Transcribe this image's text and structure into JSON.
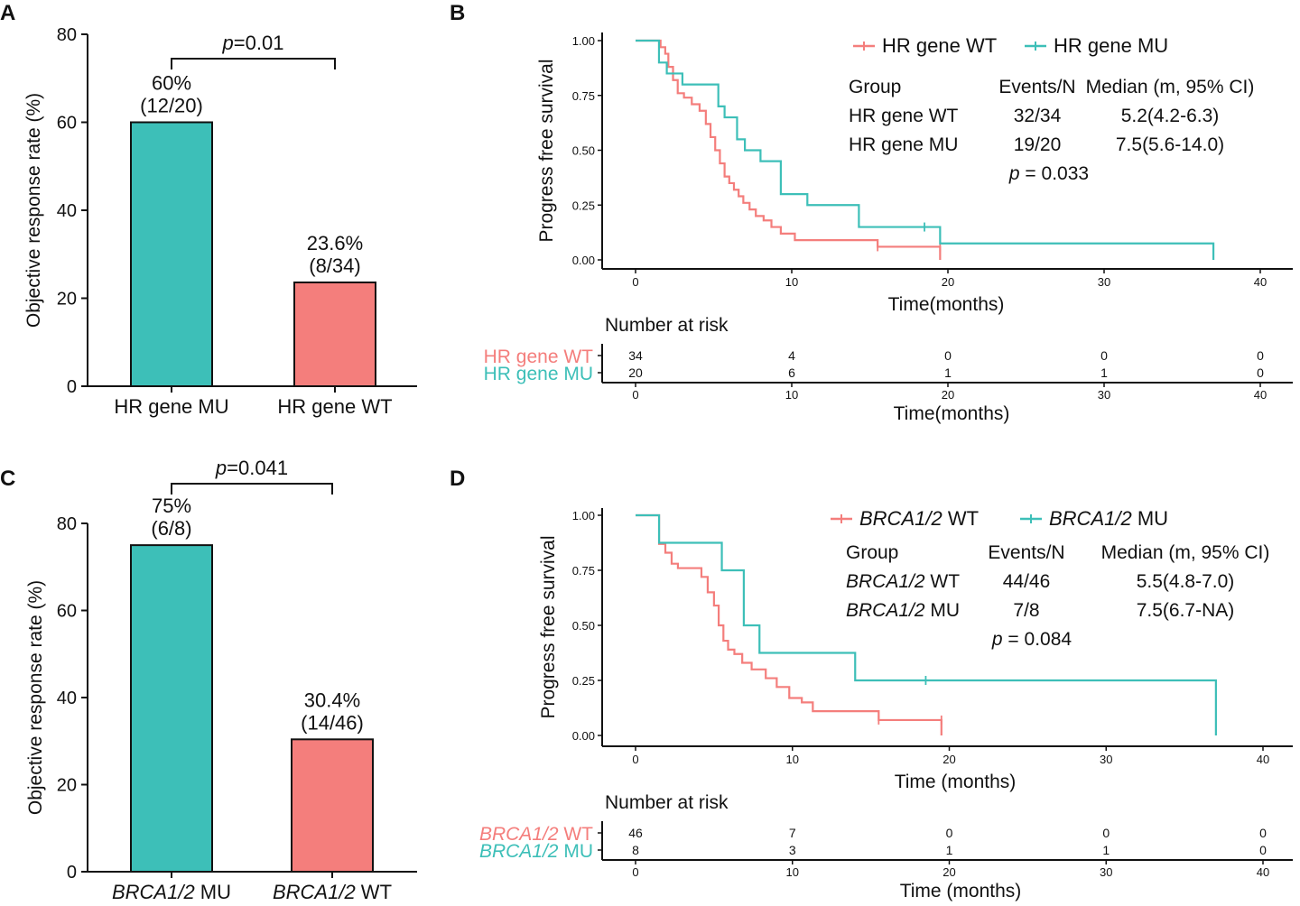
{
  "colors": {
    "mu": "#3DBFB8",
    "wt": "#F47E7C",
    "axis": "#111111"
  },
  "chart_data": [
    {
      "id": "A",
      "panel_label": "A",
      "type": "bar",
      "ylabel": "Objective response rate (%)",
      "ylim": [
        0,
        80
      ],
      "yticks": [
        0,
        20,
        40,
        60,
        80
      ],
      "categories": [
        {
          "label": "HR gene MU",
          "ital": "",
          "rest": "HR gene MU",
          "value": 60,
          "pct_label": "60%",
          "count_label": "(12/20)",
          "color": "#3DBFB8"
        },
        {
          "label": "HR gene WT",
          "ital": "",
          "rest": "HR gene WT",
          "value": 23.6,
          "pct_label": "23.6%",
          "count_label": "(8/34)",
          "color": "#F47E7C"
        }
      ],
      "pvalue": {
        "p": "p",
        "text": "=0.01"
      }
    },
    {
      "id": "C",
      "panel_label": "C",
      "type": "bar",
      "ylabel": "Objective response rate (%)",
      "ylim": [
        0,
        80
      ],
      "yticks": [
        0,
        20,
        40,
        60,
        80
      ],
      "categories": [
        {
          "label": "BRCA1/2 MU",
          "ital": "BRCA1/2",
          "rest": " MU",
          "value": 75,
          "pct_label": "75%",
          "count_label": "(6/8)",
          "color": "#3DBFB8"
        },
        {
          "label": "BRCA1/2 WT",
          "ital": "BRCA1/2",
          "rest": " WT",
          "value": 30.4,
          "pct_label": "30.4%",
          "count_label": "(14/46)",
          "color": "#F47E7C"
        }
      ],
      "pvalue": {
        "p": "p",
        "text": "=0.041"
      }
    },
    {
      "id": "B",
      "panel_label": "B",
      "type": "line",
      "subtype": "kaplan-meier",
      "ylabel": "Progress free survival",
      "xlabel": "Time(months)",
      "xlim": [
        0,
        40
      ],
      "ylim": [
        0,
        1
      ],
      "xticks": [
        0,
        10,
        20,
        30,
        40
      ],
      "yticks": [
        "0.00",
        "0.25",
        "0.50",
        "0.75",
        "1.00"
      ],
      "series": [
        {
          "name": "HR gene WT",
          "ital": "",
          "rest": "HR gene WT",
          "color": "#F47E7C",
          "x": [
            0,
            1.6,
            1.9,
            2.1,
            2.4,
            2.7,
            3.1,
            3.6,
            4.1,
            4.5,
            4.8,
            5.1,
            5.4,
            5.7,
            6.0,
            6.3,
            6.6,
            6.9,
            7.3,
            7.7,
            8.2,
            8.7,
            9.3,
            10.2,
            11.5,
            13.0,
            15.5,
            19.5
          ],
          "y": [
            1.0,
            0.97,
            0.94,
            0.88,
            0.82,
            0.76,
            0.74,
            0.71,
            0.68,
            0.62,
            0.56,
            0.5,
            0.44,
            0.38,
            0.35,
            0.32,
            0.29,
            0.26,
            0.23,
            0.2,
            0.18,
            0.15,
            0.12,
            0.09,
            0.09,
            0.09,
            0.06,
            0.0
          ],
          "censor": [
            {
              "x": 15.5,
              "y": 0.06
            },
            {
              "x": 19.5,
              "y": 0.06
            }
          ]
        },
        {
          "name": "HR gene MU",
          "ital": "",
          "rest": "HR gene MU",
          "color": "#3DBFB8",
          "x": [
            0,
            1.5,
            2.0,
            3.0,
            5.3,
            5.7,
            6.5,
            7.0,
            8.0,
            9.3,
            11.0,
            14.3,
            19.5,
            37.0
          ],
          "y": [
            1.0,
            0.9,
            0.85,
            0.8,
            0.7,
            0.65,
            0.55,
            0.5,
            0.45,
            0.3,
            0.25,
            0.15,
            0.075,
            0.0
          ],
          "censor": [
            {
              "x": 18.5,
              "y": 0.15
            }
          ]
        }
      ],
      "stats_table": {
        "headers": [
          "Group",
          "Events/N",
          "Median (m, 95% CI)"
        ],
        "rows": [
          {
            "ital": "",
            "rest": "HR gene WT",
            "events": "32/34",
            "median": "5.2(4.2-6.3)"
          },
          {
            "ital": "",
            "rest": "HR gene MU",
            "events": "19/20",
            "median": "7.5(5.6-14.0)"
          }
        ],
        "p": "p",
        "ptext": " = 0.033"
      },
      "risk_table": {
        "title": "Number at risk",
        "xlabel": "Time(months)",
        "rows": [
          {
            "ital": "",
            "rest": "HR gene WT",
            "color": "#F47E7C",
            "values": [
              34,
              4,
              0,
              0,
              0
            ]
          },
          {
            "ital": "",
            "rest": "HR gene MU",
            "color": "#3DBFB8",
            "values": [
              20,
              6,
              1,
              1,
              0
            ]
          }
        ]
      }
    },
    {
      "id": "D",
      "panel_label": "D",
      "type": "line",
      "subtype": "kaplan-meier",
      "ylabel": "Progress free survival",
      "xlabel": "Time (months)",
      "xlim": [
        0,
        40
      ],
      "ylim": [
        0,
        1
      ],
      "xticks": [
        0,
        10,
        20,
        30,
        40
      ],
      "yticks": [
        "0.00",
        "0.25",
        "0.50",
        "0.75",
        "1.00"
      ],
      "series": [
        {
          "name": "BRCA1/2 WT",
          "ital": "BRCA1/2",
          "rest": " WT",
          "color": "#F47E7C",
          "x": [
            0,
            1.5,
            1.9,
            2.3,
            2.7,
            3.2,
            4.2,
            4.6,
            5.0,
            5.3,
            5.6,
            5.9,
            6.3,
            6.8,
            7.4,
            8.3,
            9.0,
            9.8,
            10.6,
            11.3,
            13.2,
            15.5,
            19.5
          ],
          "y": [
            1.0,
            0.87,
            0.83,
            0.78,
            0.76,
            0.76,
            0.72,
            0.65,
            0.59,
            0.5,
            0.43,
            0.39,
            0.37,
            0.33,
            0.3,
            0.26,
            0.22,
            0.17,
            0.15,
            0.11,
            0.11,
            0.07,
            0.0
          ],
          "censor": [
            {
              "x": 15.5,
              "y": 0.07
            },
            {
              "x": 19.5,
              "y": 0.07
            }
          ]
        },
        {
          "name": "BRCA1/2 MU",
          "ital": "BRCA1/2",
          "rest": " MU",
          "color": "#3DBFB8",
          "x": [
            0,
            1.5,
            5.5,
            6.9,
            7.9,
            14.0,
            37.0
          ],
          "y": [
            1.0,
            0.875,
            0.75,
            0.5,
            0.375,
            0.25,
            0.0
          ],
          "censor": [
            {
              "x": 18.5,
              "y": 0.25
            }
          ]
        }
      ],
      "stats_table": {
        "headers": [
          "Group",
          "Events/N",
          "Median (m, 95% CI)"
        ],
        "rows": [
          {
            "ital": "BRCA1/2",
            "rest": " WT",
            "events": "44/46",
            "median": "5.5(4.8-7.0)"
          },
          {
            "ital": "BRCA1/2",
            "rest": " MU",
            "events": "7/8",
            "median": "7.5(6.7-NA)"
          }
        ],
        "p": "p",
        "ptext": " = 0.084"
      },
      "risk_table": {
        "title": "Number at risk",
        "xlabel": "Time (months)",
        "rows": [
          {
            "ital": "BRCA1/2",
            "rest": " WT",
            "color": "#F47E7C",
            "values": [
              46,
              7,
              0,
              0,
              0
            ]
          },
          {
            "ital": "BRCA1/2",
            "rest": " MU",
            "color": "#3DBFB8",
            "values": [
              8,
              3,
              1,
              1,
              0
            ]
          }
        ]
      }
    }
  ]
}
